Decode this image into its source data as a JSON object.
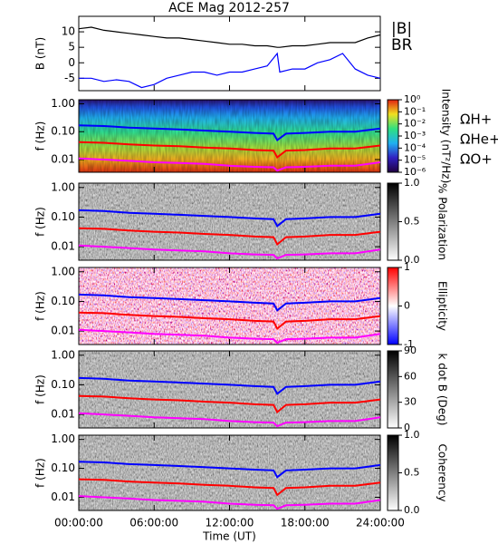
{
  "chart_data": [
    {
      "type": "line",
      "title": "ACE Mag 2012-257",
      "ylabel": "B (nT)",
      "ylim": [
        -9,
        15
      ],
      "yticks": [
        -5,
        0,
        5,
        10
      ],
      "x": [
        0,
        1,
        2,
        3,
        4,
        5,
        6,
        7,
        8,
        9,
        10,
        11,
        12,
        13,
        14,
        15,
        15.8,
        16,
        17,
        18,
        19,
        20,
        21,
        22,
        23,
        24
      ],
      "series": [
        {
          "name": "|B|",
          "color": "#000000",
          "values": [
            11,
            11.5,
            10.5,
            10,
            9.5,
            9,
            8.5,
            8,
            8,
            7.5,
            7,
            6.5,
            6,
            6,
            5.5,
            5.5,
            5,
            5,
            5.5,
            5.5,
            6,
            6.5,
            6.5,
            6.5,
            8,
            9
          ]
        },
        {
          "name": "BR",
          "color": "#0000ff",
          "values": [
            -5,
            -5,
            -6,
            -5.5,
            -6,
            -8,
            -7,
            -5,
            -4,
            -3,
            -3,
            -4,
            -3,
            -3,
            -2,
            -1,
            3,
            -3,
            -2,
            -2,
            0,
            1,
            3,
            -2,
            -4,
            -5
          ]
        }
      ]
    },
    {
      "type": "spectrogram",
      "style": "rainbow",
      "ylabel": "f (Hz)",
      "log_scale": true,
      "ylim": [
        0.0035,
        1.4
      ],
      "yticks": [
        {
          "value": 1,
          "label": "1.00"
        },
        {
          "value": 0.1,
          "label": "0.10"
        },
        {
          "value": 0.01,
          "label": "0.01"
        }
      ],
      "x": [
        0,
        2,
        4,
        6,
        8,
        10,
        12,
        14,
        15.5,
        15.8,
        16.5,
        18,
        20,
        22,
        24
      ],
      "series": [
        {
          "name": "ΩH+",
          "color": "#0000ff",
          "values": [
            0.17,
            0.16,
            0.14,
            0.13,
            0.12,
            0.11,
            0.1,
            0.09,
            0.085,
            0.05,
            0.085,
            0.09,
            0.1,
            0.1,
            0.13
          ]
        },
        {
          "name": "ΩHe+",
          "color": "#ff0000",
          "values": [
            0.042,
            0.04,
            0.035,
            0.032,
            0.03,
            0.027,
            0.025,
            0.022,
            0.021,
            0.012,
            0.021,
            0.022,
            0.025,
            0.025,
            0.032
          ]
        },
        {
          "name": "ΩO+",
          "color": "#ff00ff",
          "values": [
            0.011,
            0.01,
            0.009,
            0.008,
            0.0075,
            0.007,
            0.006,
            0.0055,
            0.0053,
            0.004,
            0.0053,
            0.0055,
            0.006,
            0.006,
            0.008
          ]
        }
      ],
      "colorbar": {
        "label": "Intensity (nT²/Hz)",
        "log_scale": true,
        "lim": [
          1e-06,
          1
        ],
        "ticks": [
          {
            "value": 1,
            "label": "10⁰"
          },
          {
            "value": 0.1,
            "label": "10⁻¹"
          },
          {
            "value": 0.01,
            "label": "10⁻²"
          },
          {
            "value": 0.001,
            "label": "10⁻³"
          },
          {
            "value": 0.0001,
            "label": "10⁻⁴"
          },
          {
            "value": 1e-05,
            "label": "10⁻⁵"
          },
          {
            "value": 1e-06,
            "label": "10⁻⁶"
          }
        ]
      }
    },
    {
      "type": "spectrogram",
      "style": "gray",
      "ylabel": "f (Hz)",
      "log_scale": true,
      "ylim": [
        0.0035,
        1.4
      ],
      "yticks": [
        {
          "value": 1,
          "label": "1.00"
        },
        {
          "value": 0.1,
          "label": "0.10"
        },
        {
          "value": 0.01,
          "label": "0.01"
        }
      ],
      "x": [
        0,
        2,
        4,
        6,
        8,
        10,
        12,
        14,
        15.5,
        15.8,
        16.5,
        18,
        20,
        22,
        24
      ],
      "series": [
        {
          "color": "#0000ff",
          "values": [
            0.17,
            0.16,
            0.14,
            0.13,
            0.12,
            0.11,
            0.1,
            0.09,
            0.085,
            0.05,
            0.085,
            0.09,
            0.1,
            0.1,
            0.13
          ]
        },
        {
          "color": "#ff0000",
          "values": [
            0.042,
            0.04,
            0.035,
            0.032,
            0.03,
            0.027,
            0.025,
            0.022,
            0.021,
            0.012,
            0.021,
            0.022,
            0.025,
            0.025,
            0.032
          ]
        },
        {
          "color": "#ff00ff",
          "values": [
            0.011,
            0.01,
            0.009,
            0.008,
            0.0075,
            0.007,
            0.006,
            0.0055,
            0.0053,
            0.004,
            0.0053,
            0.0055,
            0.006,
            0.006,
            0.008
          ]
        }
      ],
      "colorbar": {
        "label": "% Polarization",
        "lim": [
          0,
          1
        ],
        "ticks": [
          {
            "value": 1,
            "label": "1.0"
          },
          0.5,
          {
            "value": 0,
            "label": "0.0"
          }
        ]
      }
    },
    {
      "type": "spectrogram",
      "style": "redblue",
      "ylabel": "f (Hz)",
      "log_scale": true,
      "ylim": [
        0.0035,
        1.4
      ],
      "yticks": [
        {
          "value": 1,
          "label": "1.00"
        },
        {
          "value": 0.1,
          "label": "0.10"
        },
        {
          "value": 0.01,
          "label": "0.01"
        }
      ],
      "x": [
        0,
        2,
        4,
        6,
        8,
        10,
        12,
        14,
        15.5,
        15.8,
        16.5,
        18,
        20,
        22,
        24
      ],
      "series": [
        {
          "color": "#0000ff",
          "values": [
            0.17,
            0.16,
            0.14,
            0.13,
            0.12,
            0.11,
            0.1,
            0.09,
            0.085,
            0.05,
            0.085,
            0.09,
            0.1,
            0.1,
            0.13
          ]
        },
        {
          "color": "#ff0000",
          "values": [
            0.042,
            0.04,
            0.035,
            0.032,
            0.03,
            0.027,
            0.025,
            0.022,
            0.021,
            0.012,
            0.021,
            0.022,
            0.025,
            0.025,
            0.032
          ]
        },
        {
          "color": "#ff00ff",
          "values": [
            0.011,
            0.01,
            0.009,
            0.008,
            0.0075,
            0.007,
            0.006,
            0.0055,
            0.0053,
            0.004,
            0.0053,
            0.0055,
            0.006,
            0.006,
            0.008
          ]
        }
      ],
      "colorbar": {
        "label": "Ellipticity",
        "lim": [
          -1,
          1
        ],
        "ticks": [
          1,
          0,
          -1
        ]
      }
    },
    {
      "type": "spectrogram",
      "style": "gray",
      "ylabel": "f (Hz)",
      "log_scale": true,
      "ylim": [
        0.0035,
        1.4
      ],
      "yticks": [
        {
          "value": 1,
          "label": "1.00"
        },
        {
          "value": 0.1,
          "label": "0.10"
        },
        {
          "value": 0.01,
          "label": "0.01"
        }
      ],
      "x": [
        0,
        2,
        4,
        6,
        8,
        10,
        12,
        14,
        15.5,
        15.8,
        16.5,
        18,
        20,
        22,
        24
      ],
      "series": [
        {
          "color": "#0000ff",
          "values": [
            0.17,
            0.16,
            0.14,
            0.13,
            0.12,
            0.11,
            0.1,
            0.09,
            0.085,
            0.05,
            0.085,
            0.09,
            0.1,
            0.1,
            0.13
          ]
        },
        {
          "color": "#ff0000",
          "values": [
            0.042,
            0.04,
            0.035,
            0.032,
            0.03,
            0.027,
            0.025,
            0.022,
            0.021,
            0.012,
            0.021,
            0.022,
            0.025,
            0.025,
            0.032
          ]
        },
        {
          "color": "#ff00ff",
          "values": [
            0.011,
            0.01,
            0.009,
            0.008,
            0.0075,
            0.007,
            0.006,
            0.0055,
            0.0053,
            0.004,
            0.0053,
            0.0055,
            0.006,
            0.006,
            0.008
          ]
        }
      ],
      "colorbar": {
        "label": "k dot B (Deg)",
        "lim": [
          0,
          90
        ],
        "ticks": [
          90,
          60,
          30,
          0
        ]
      }
    },
    {
      "type": "spectrogram",
      "style": "gray",
      "ylabel": "f (Hz)",
      "log_scale": true,
      "ylim": [
        0.0035,
        1.4
      ],
      "yticks": [
        {
          "value": 1,
          "label": "1.00"
        },
        {
          "value": 0.1,
          "label": "0.10"
        },
        {
          "value": 0.01,
          "label": "0.01"
        }
      ],
      "x": [
        0,
        2,
        4,
        6,
        8,
        10,
        12,
        14,
        15.5,
        15.8,
        16.5,
        18,
        20,
        22,
        24
      ],
      "series": [
        {
          "color": "#0000ff",
          "values": [
            0.17,
            0.16,
            0.14,
            0.13,
            0.12,
            0.11,
            0.1,
            0.09,
            0.085,
            0.05,
            0.085,
            0.09,
            0.1,
            0.1,
            0.13
          ]
        },
        {
          "color": "#ff0000",
          "values": [
            0.042,
            0.04,
            0.035,
            0.032,
            0.03,
            0.027,
            0.025,
            0.022,
            0.021,
            0.012,
            0.021,
            0.022,
            0.025,
            0.025,
            0.032
          ]
        },
        {
          "color": "#ff00ff",
          "values": [
            0.011,
            0.01,
            0.009,
            0.008,
            0.0075,
            0.007,
            0.006,
            0.0055,
            0.0053,
            0.004,
            0.0053,
            0.0055,
            0.006,
            0.006,
            0.008
          ]
        }
      ],
      "colorbar": {
        "label": "Coherency",
        "lim": [
          0,
          1
        ],
        "ticks": [
          {
            "value": 1,
            "label": "1.0"
          },
          0.5,
          {
            "value": 0,
            "label": "0.0"
          }
        ]
      },
      "xlabel": "Time (UT)",
      "xlim": [
        0,
        24
      ],
      "xticks": [
        {
          "value": 0,
          "label": "00:00:00"
        },
        {
          "value": 6,
          "label": "06:00:00"
        },
        {
          "value": 12,
          "label": "12:00:00"
        },
        {
          "value": 18,
          "label": "18:00:00"
        },
        {
          "value": 24,
          "label": "24:00:00"
        }
      ]
    }
  ]
}
